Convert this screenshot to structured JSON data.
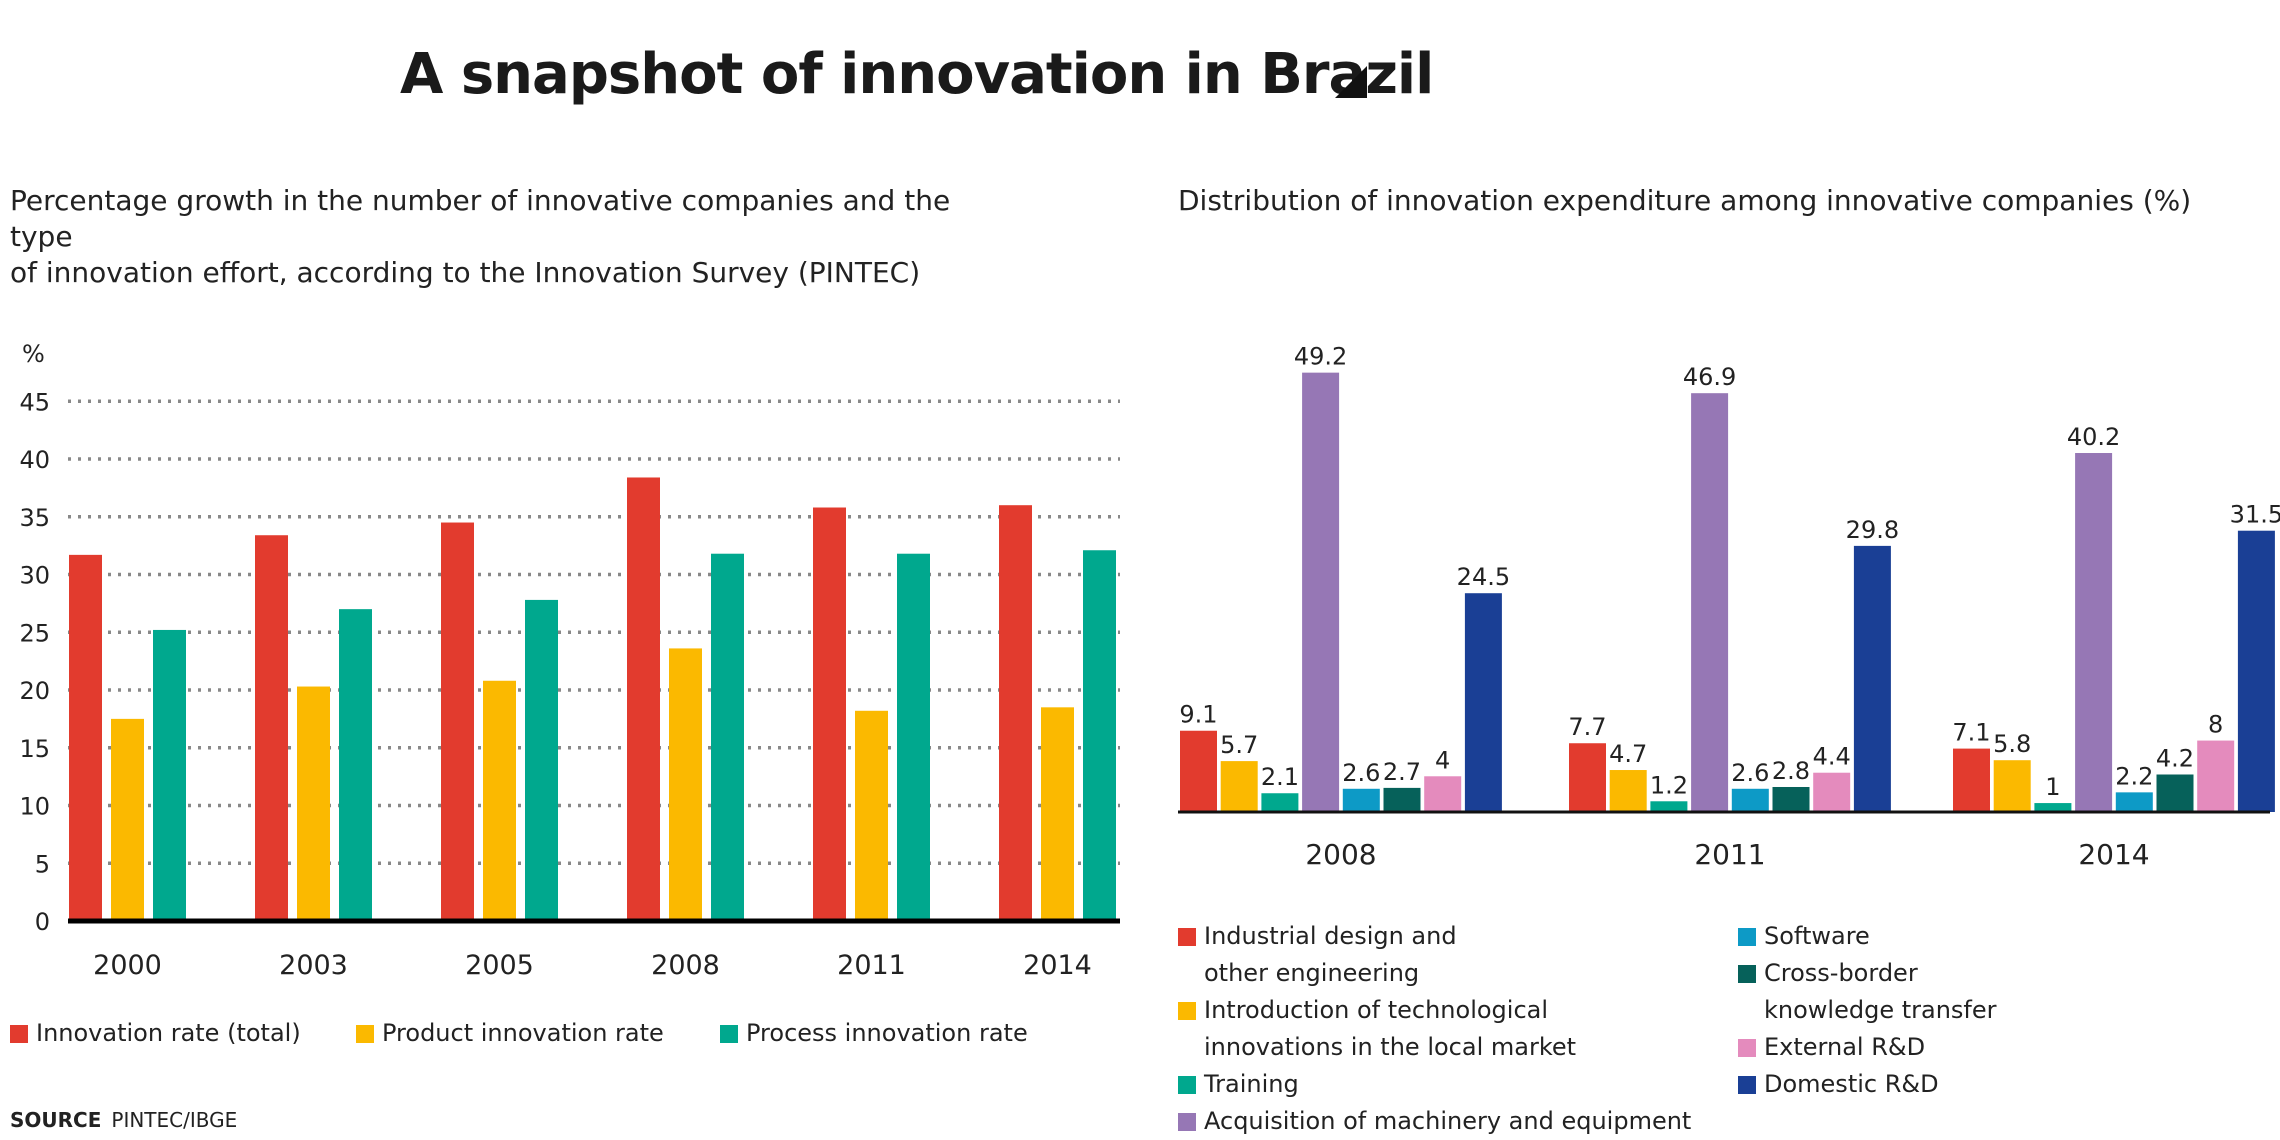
{
  "title": "A snapshot of innovation in Brazil",
  "left_subtitle_line1": "Percentage growth in the number of innovative companies and the type",
  "left_subtitle_line2": "of innovation effort, according to the Innovation Survey (PINTEC)",
  "right_subtitle": "Distribution of innovation expenditure among innovative companies (%)",
  "source_label": "SOURCE",
  "source_text": "PINTEC/IBGE",
  "chart_data": [
    {
      "type": "bar",
      "ylabel": "%",
      "ylim": [
        0,
        45
      ],
      "yticks": [
        0,
        5,
        10,
        15,
        20,
        25,
        30,
        35,
        40,
        45
      ],
      "grid": "dotted horizontal",
      "legend_placement": "bottom",
      "categories": [
        "2000",
        "2003",
        "2005",
        "2008",
        "2011",
        "2014"
      ],
      "series": [
        {
          "name": "Innovation rate (total)",
          "color": "#e23b2e",
          "values": [
            31.7,
            33.4,
            34.5,
            38.4,
            35.8,
            36.0
          ]
        },
        {
          "name": "Product innovation rate",
          "color": "#fbb900",
          "values": [
            17.5,
            20.3,
            20.8,
            23.6,
            18.2,
            18.5
          ]
        },
        {
          "name": "Process innovation rate",
          "color": "#00a88e",
          "values": [
            25.2,
            27.0,
            27.8,
            31.8,
            31.8,
            32.1
          ]
        }
      ]
    },
    {
      "type": "bar",
      "data_labels": true,
      "legend_placement": "bottom",
      "categories": [
        "2008",
        "2011",
        "2014"
      ],
      "series": [
        {
          "name": "Industrial design and other engineering",
          "color": "#e23b2e",
          "values": [
            9.1,
            7.7,
            7.1
          ],
          "labels": [
            "9.1",
            "7.7",
            "7.1"
          ]
        },
        {
          "name": "Introduction of technological innovations in the local market",
          "color": "#fbb900",
          "values": [
            5.7,
            4.7,
            5.8
          ],
          "labels": [
            "5.7",
            "4.7",
            "5.8"
          ]
        },
        {
          "name": "Training",
          "color": "#00a88e",
          "values": [
            2.1,
            1.2,
            1.0
          ],
          "labels": [
            "2.1",
            "1.2",
            "1"
          ]
        },
        {
          "name": "Acquisition of machinery and equipment",
          "color": "#9677b5",
          "values": [
            49.2,
            46.9,
            40.2
          ],
          "labels": [
            "49.2",
            "46.9",
            "40.2"
          ]
        },
        {
          "name": "Software",
          "color": "#0d9ac6",
          "values": [
            2.6,
            2.6,
            2.2
          ],
          "labels": [
            "2.6",
            "2.6",
            "2.2"
          ]
        },
        {
          "name": "Cross-border knowledge transfer",
          "color": "#06615a",
          "values": [
            2.7,
            2.8,
            4.2
          ],
          "labels": [
            "2.7",
            "2.8",
            "4.2"
          ]
        },
        {
          "name": "External R&D",
          "color": "#e48bbd",
          "values": [
            4.0,
            4.4,
            8.0
          ],
          "labels": [
            "4",
            "4.4",
            "8"
          ]
        },
        {
          "name": "Domestic R&D",
          "color": "#1a3f95",
          "values": [
            24.5,
            29.8,
            31.5
          ],
          "labels": [
            "24.5",
            "29.8",
            "31.5"
          ]
        }
      ]
    }
  ],
  "right_legend": [
    {
      "line1": "Industrial design and",
      "line2": "other engineering"
    },
    {
      "line1": "Introduction of technological",
      "line2": "innovations in the local market"
    },
    {
      "line1": "Training",
      "line2": ""
    },
    {
      "line1": "Acquisition of machinery and equipment",
      "line2": ""
    },
    {
      "line1": "Software",
      "line2": ""
    },
    {
      "line1": "Cross-border",
      "line2": "knowledge transfer"
    },
    {
      "line1": "External R&D",
      "line2": ""
    },
    {
      "line1": "Domestic R&D",
      "line2": ""
    }
  ]
}
